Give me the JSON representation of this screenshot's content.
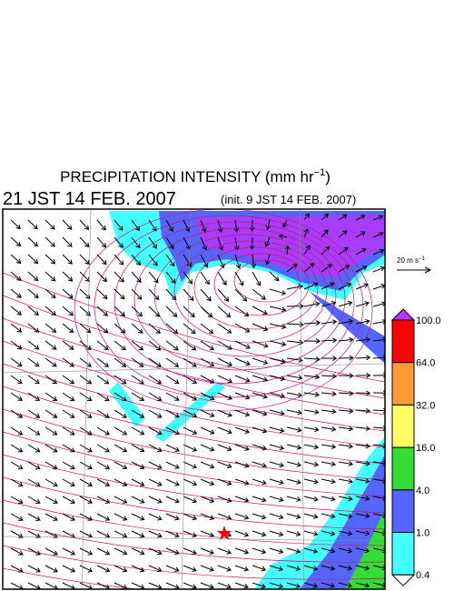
{
  "header": {
    "title": "PRECIPITATION INTENSITY (mm hr",
    "title_superscript": "−1",
    "title_end": ")",
    "valid_time": "21 JST 14 FEB. 2007",
    "init_time": "(init. 9 JST 14 FEB. 2007)"
  },
  "reference_arrow": {
    "label": "20 m s",
    "label_superscript": "−1"
  },
  "colorbar": {
    "labels": [
      "100.0",
      "64.0",
      "32.0",
      "16.0",
      "4.0",
      "1.0",
      "0.4"
    ],
    "colors": [
      "#ff0000",
      "#ff9933",
      "#ffff66",
      "#33dd33",
      "#5566ff",
      "#44ffff"
    ],
    "over_color": "#bb33ff",
    "under_color": "#ffffff"
  }
}
